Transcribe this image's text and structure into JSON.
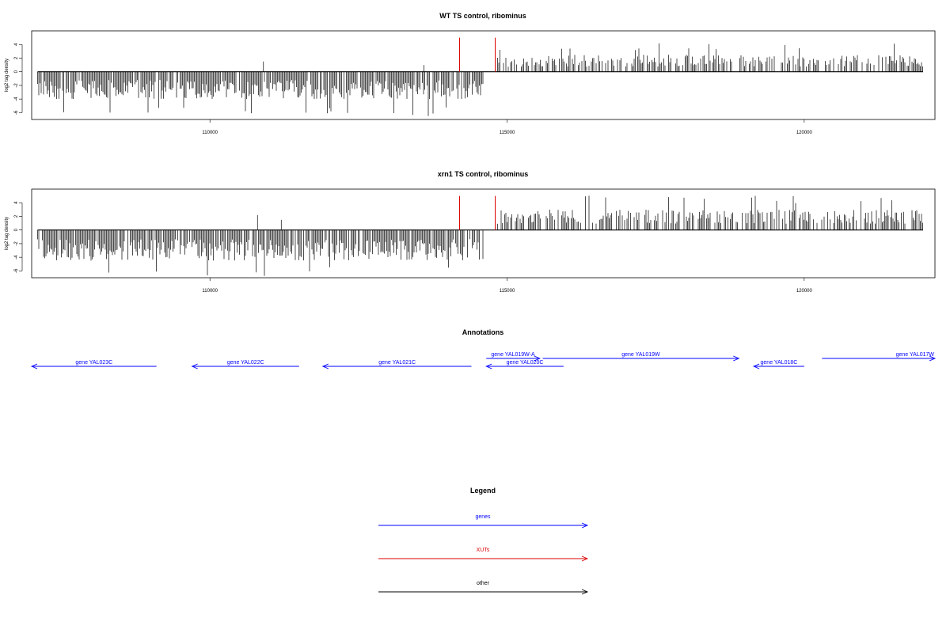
{
  "colors": {
    "gene": "#0000ff",
    "xut": "#dd0000",
    "other": "#000000",
    "signal": "#000000"
  },
  "chart_data": [
    {
      "type": "bar",
      "title": "WT TS control, ribominus",
      "ylabel": "log2 tag density",
      "xlim": [
        107000,
        122200
      ],
      "ylim": [
        -7,
        6
      ],
      "yticks": [
        -6,
        -4,
        -2,
        0,
        2,
        4
      ],
      "ytick_labels": [
        "-6",
        "-4",
        "-2",
        "0",
        "2",
        "4"
      ],
      "xticks": [
        110000,
        115000,
        120000
      ],
      "xtick_labels": [
        "110000",
        "115000",
        "120000"
      ],
      "series": [
        {
          "strand": "minus",
          "x_range": [
            107100,
            114600
          ],
          "typical_min": -4,
          "peak_min": -6.5
        },
        {
          "strand": "plus",
          "x_range": [
            114800,
            122000
          ],
          "typical_max": 2.5,
          "peak_max": 4.2
        }
      ],
      "isolated_peaks": [
        {
          "x": 110900,
          "y": 1.5
        },
        {
          "x": 113600,
          "y": 1
        }
      ],
      "red_markers": [
        {
          "x": 114200,
          "y": 5
        },
        {
          "x": 114800,
          "y": 5
        }
      ]
    },
    {
      "type": "bar",
      "title": "xrn1 TS control, ribominus",
      "ylabel": "log2 tag density",
      "xlim": [
        107000,
        122200
      ],
      "ylim": [
        -7,
        6
      ],
      "yticks": [
        -6,
        -4,
        -2,
        0,
        2,
        4
      ],
      "ytick_labels": [
        "-6",
        "-4",
        "-2",
        "0",
        "2",
        "4"
      ],
      "xticks": [
        110000,
        115000,
        120000
      ],
      "xtick_labels": [
        "110000",
        "115000",
        "120000"
      ],
      "series": [
        {
          "strand": "minus",
          "x_range": [
            107100,
            114600
          ],
          "typical_min": -4.5,
          "peak_min": -6.8
        },
        {
          "strand": "plus",
          "x_range": [
            114800,
            122000
          ],
          "typical_max": 3,
          "peak_max": 5.2
        }
      ],
      "isolated_peaks": [
        {
          "x": 110800,
          "y": 2.2
        },
        {
          "x": 111200,
          "y": 1.5
        }
      ],
      "red_markers": [
        {
          "x": 114200,
          "y": 5
        },
        {
          "x": 114800,
          "y": 5
        }
      ]
    }
  ],
  "annotations": {
    "title": "Annotations",
    "genes": [
      {
        "label": "gene YAL023C",
        "start": 107000,
        "end": 109100,
        "dir": "left",
        "row": 1
      },
      {
        "label": "gene YAL022C",
        "start": 109700,
        "end": 111500,
        "dir": "left",
        "row": 1
      },
      {
        "label": "gene YAL021C",
        "start": 111900,
        "end": 114400,
        "dir": "left",
        "row": 1
      },
      {
        "label": "gene YAL020C",
        "start": 114650,
        "end": 115950,
        "dir": "left",
        "row": 1
      },
      {
        "label": "gene YAL019W-A",
        "start": 114650,
        "end": 115550,
        "dir": "right",
        "row": 0
      },
      {
        "label": "gene YAL019W",
        "start": 115600,
        "end": 118900,
        "dir": "right",
        "row": 0
      },
      {
        "label": "gene YAL018C",
        "start": 119150,
        "end": 120000,
        "dir": "left",
        "row": 1
      },
      {
        "label": "gene YAL017W",
        "start": 120300,
        "end": 122300,
        "dir": "right",
        "row": 0
      }
    ]
  },
  "legend": {
    "title": "Legend",
    "items": [
      {
        "label": "genes",
        "color": "#0000ff"
      },
      {
        "label": "XUTs",
        "color": "#dd0000"
      },
      {
        "label": "other",
        "color": "#000000"
      }
    ]
  }
}
